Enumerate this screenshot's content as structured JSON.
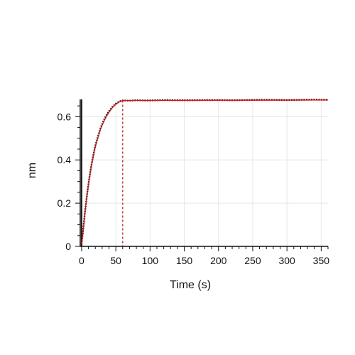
{
  "chart_data": {
    "type": "line",
    "xlabel": "Time (s)",
    "ylabel": "nm",
    "xlim": [
      -2,
      360
    ],
    "ylim": [
      0,
      0.68
    ],
    "x_ticks": [
      0,
      50,
      100,
      150,
      200,
      250,
      300,
      350
    ],
    "y_ticks": [
      0,
      0.2,
      0.4,
      0.6
    ],
    "x_tick_labels": [
      "0",
      "50",
      "100",
      "150",
      "200",
      "250",
      "300",
      "350"
    ],
    "y_tick_labels": [
      "0",
      "0.2",
      "0.4",
      "0.6"
    ],
    "grid": true,
    "series": [
      {
        "kind": "measured",
        "color": "#1a1a1a",
        "x": [
          0,
          2,
          5,
          8,
          11,
          14,
          17,
          20,
          24,
          28,
          32,
          36,
          40,
          45,
          50,
          55,
          60,
          70,
          80,
          90,
          100,
          120,
          140,
          160,
          180,
          200,
          220,
          240,
          260,
          280,
          300,
          320,
          340,
          360
        ],
        "y": [
          0.01,
          0.07,
          0.16,
          0.24,
          0.31,
          0.37,
          0.42,
          0.465,
          0.51,
          0.55,
          0.58,
          0.605,
          0.625,
          0.645,
          0.66,
          0.67,
          0.675,
          0.674,
          0.676,
          0.675,
          0.675,
          0.677,
          0.676,
          0.676,
          0.677,
          0.677,
          0.676,
          0.677,
          0.678,
          0.678,
          0.677,
          0.678,
          0.679,
          0.678
        ]
      },
      {
        "kind": "fit",
        "color": "#e01010",
        "x": [
          0,
          2,
          5,
          8,
          11,
          14,
          17,
          20,
          24,
          28,
          32,
          36,
          40,
          45,
          50,
          55,
          60,
          360
        ],
        "y": [
          0.01,
          0.065,
          0.155,
          0.235,
          0.305,
          0.365,
          0.415,
          0.46,
          0.505,
          0.545,
          0.575,
          0.6,
          0.62,
          0.642,
          0.657,
          0.668,
          0.675,
          0.677
        ]
      }
    ],
    "annotations": [
      {
        "type": "vline",
        "x": 60,
        "style": "dashed",
        "color": "#e01010"
      },
      {
        "type": "vline",
        "x": 0,
        "style": "solid",
        "color": "#1a1a1a"
      }
    ]
  }
}
